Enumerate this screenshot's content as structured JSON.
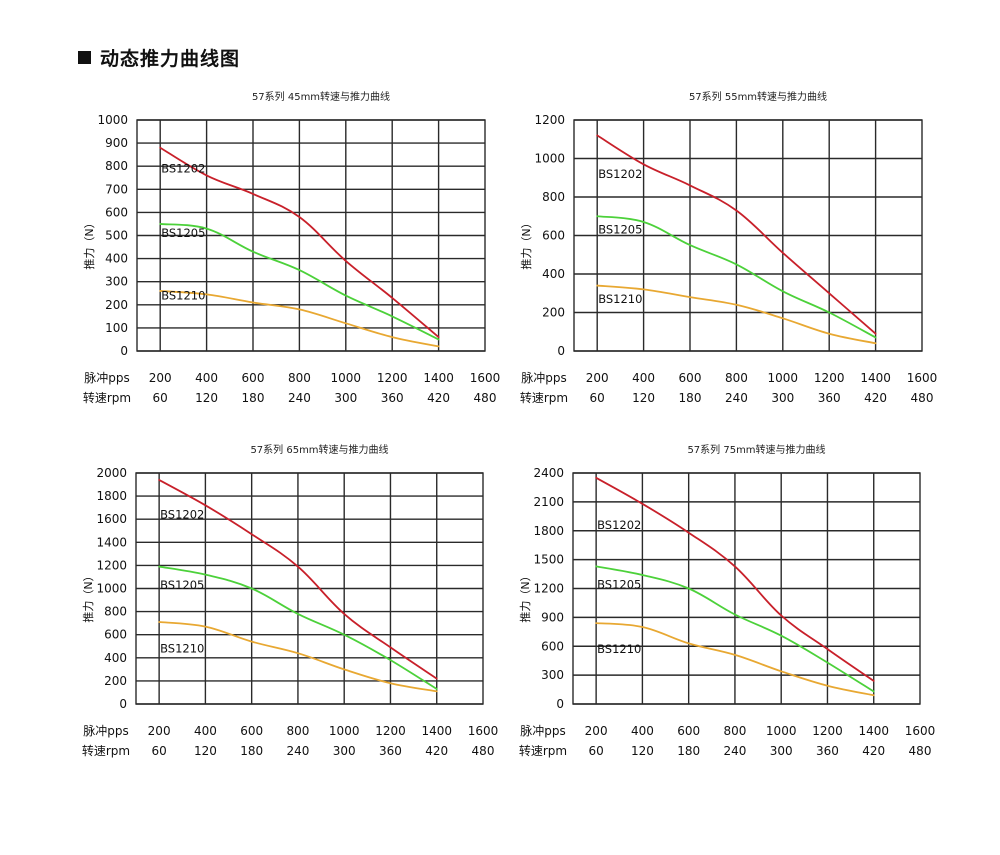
{
  "page": {
    "title": "动态推力曲线图",
    "title_icon": "square-bullet-icon"
  },
  "colors": {
    "BS1202": "#c8202a",
    "BS1205": "#4cd13a",
    "BS1210": "#e8a832",
    "grid": "#2a2a2a"
  },
  "axis_labels": {
    "y": "推力（N）",
    "x_row1": "脉冲pps",
    "x_row2": "转速rpm"
  },
  "chart_data": [
    {
      "type": "line",
      "title": "57系列 45mm转速与推力曲线",
      "xlabel": [
        "脉冲pps",
        "转速rpm"
      ],
      "ylabel": "推力（N）",
      "x_ticks_pps": [
        200,
        400,
        600,
        800,
        1000,
        1200,
        1400,
        1600
      ],
      "x_ticks_rpm": [
        60,
        120,
        180,
        240,
        300,
        360,
        420,
        480
      ],
      "xlim": [
        100,
        1600
      ],
      "ylim": [
        0,
        1000
      ],
      "y_ticks": [
        0,
        100,
        200,
        300,
        400,
        500,
        600,
        700,
        800,
        900,
        1000
      ],
      "grid": true,
      "x": [
        200,
        400,
        600,
        800,
        1000,
        1200,
        1400
      ],
      "series": [
        {
          "name": "BS1202",
          "values": [
            880,
            760,
            680,
            580,
            390,
            230,
            60
          ],
          "label_y": 790
        },
        {
          "name": "BS1205",
          "values": [
            550,
            530,
            430,
            350,
            240,
            150,
            50
          ],
          "label_y": 510
        },
        {
          "name": "BS1210",
          "values": [
            260,
            245,
            210,
            180,
            120,
            60,
            20
          ],
          "label_y": 240
        }
      ]
    },
    {
      "type": "line",
      "title": "57系列 55mm转速与推力曲线",
      "xlabel": [
        "脉冲pps",
        "转速rpm"
      ],
      "ylabel": "推力（N）",
      "x_ticks_pps": [
        200,
        400,
        600,
        800,
        1000,
        1200,
        1400,
        1600
      ],
      "x_ticks_rpm": [
        60,
        120,
        180,
        240,
        300,
        360,
        420,
        480
      ],
      "xlim": [
        100,
        1600
      ],
      "ylim": [
        0,
        1200
      ],
      "y_ticks": [
        0,
        200,
        400,
        600,
        800,
        1000,
        1200
      ],
      "grid": true,
      "x": [
        200,
        400,
        600,
        800,
        1000,
        1200,
        1400
      ],
      "series": [
        {
          "name": "BS1202",
          "values": [
            1120,
            970,
            860,
            730,
            510,
            300,
            90
          ],
          "label_y": 920
        },
        {
          "name": "BS1205",
          "values": [
            700,
            670,
            550,
            450,
            310,
            200,
            70
          ],
          "label_y": 630
        },
        {
          "name": "BS1210",
          "values": [
            340,
            320,
            280,
            240,
            170,
            90,
            40
          ],
          "label_y": 270
        }
      ]
    },
    {
      "type": "line",
      "title": "57系列 65mm转速与推力曲线",
      "xlabel": [
        "脉冲pps",
        "转速rpm"
      ],
      "ylabel": "推力（N）",
      "x_ticks_pps": [
        200,
        400,
        600,
        800,
        1000,
        1200,
        1400,
        1600
      ],
      "x_ticks_rpm": [
        60,
        120,
        180,
        240,
        300,
        360,
        420,
        480
      ],
      "xlim": [
        100,
        1600
      ],
      "ylim": [
        0,
        2000
      ],
      "y_ticks": [
        0,
        200,
        400,
        600,
        800,
        1000,
        1200,
        1400,
        1600,
        1800,
        2000
      ],
      "grid": true,
      "x": [
        200,
        400,
        600,
        800,
        1000,
        1200,
        1400
      ],
      "series": [
        {
          "name": "BS1202",
          "values": [
            1940,
            1720,
            1470,
            1190,
            780,
            490,
            220
          ],
          "label_y": 1640
        },
        {
          "name": "BS1205",
          "values": [
            1190,
            1120,
            1000,
            780,
            600,
            380,
            130
          ],
          "label_y": 1030
        },
        {
          "name": "BS1210",
          "values": [
            710,
            670,
            540,
            440,
            300,
            180,
            110
          ],
          "label_y": 480
        }
      ]
    },
    {
      "type": "line",
      "title": "57系列 75mm转速与推力曲线",
      "xlabel": [
        "脉冲pps",
        "转速rpm"
      ],
      "ylabel": "推力（N）",
      "x_ticks_pps": [
        200,
        400,
        600,
        800,
        1000,
        1200,
        1400,
        1600
      ],
      "x_ticks_rpm": [
        60,
        120,
        180,
        240,
        300,
        360,
        420,
        480
      ],
      "xlim": [
        100,
        1600
      ],
      "ylim": [
        0,
        2400
      ],
      "y_ticks": [
        0,
        300,
        600,
        900,
        1200,
        1500,
        1800,
        2100,
        2400
      ],
      "grid": true,
      "x": [
        200,
        400,
        600,
        800,
        1000,
        1200,
        1400
      ],
      "series": [
        {
          "name": "BS1202",
          "values": [
            2350,
            2080,
            1780,
            1430,
            920,
            570,
            240
          ],
          "label_y": 1860
        },
        {
          "name": "BS1205",
          "values": [
            1430,
            1340,
            1200,
            930,
            710,
            430,
            130
          ],
          "label_y": 1240
        },
        {
          "name": "BS1210",
          "values": [
            840,
            800,
            630,
            510,
            340,
            190,
            90
          ],
          "label_y": 570
        }
      ]
    }
  ]
}
